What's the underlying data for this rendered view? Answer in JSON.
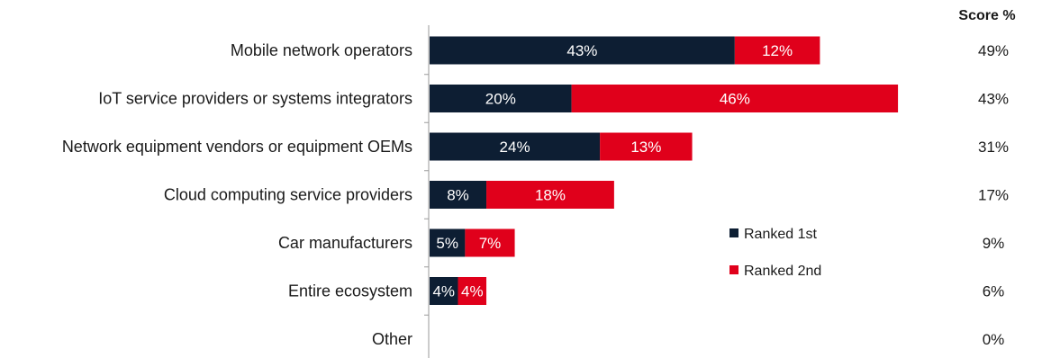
{
  "chart_data": {
    "type": "bar",
    "orientation": "horizontal",
    "stacked": true,
    "categories": [
      "Mobile network operators",
      "IoT service providers or systems integrators",
      "Network equipment vendors or equipment OEMs",
      "Cloud computing service providers",
      "Car manufacturers",
      "Entire ecosystem",
      "Other"
    ],
    "series": [
      {
        "name": "Ranked 1st",
        "color": "#0d1e33",
        "values": [
          43,
          20,
          24,
          8,
          5,
          4,
          0
        ]
      },
      {
        "name": "Ranked 2nd",
        "color": "#e0001b",
        "values": [
          12,
          46,
          13,
          18,
          7,
          4,
          0
        ]
      }
    ],
    "score_header": "Score %",
    "scores": [
      "49%",
      "43%",
      "31%",
      "17%",
      "9%",
      "6%",
      "0%"
    ],
    "value_suffix": "%",
    "xlim": [
      0,
      66
    ],
    "grid": false,
    "legend": "center-right"
  }
}
